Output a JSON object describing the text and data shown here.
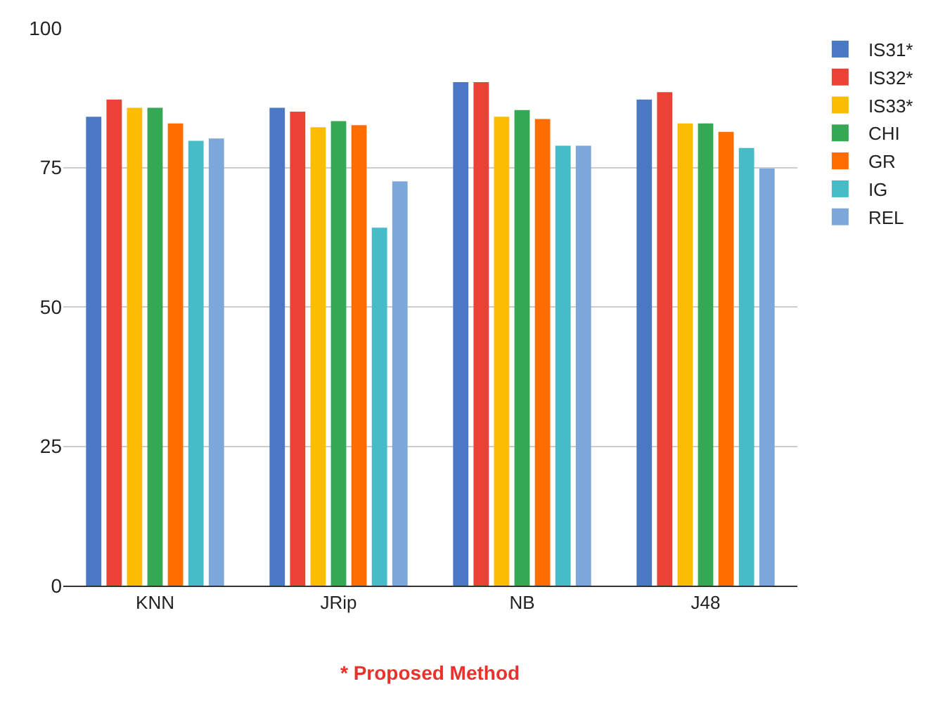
{
  "chart_data": {
    "type": "bar",
    "categories": [
      "KNN",
      "JRip",
      "NB",
      "J48"
    ],
    "series": [
      {
        "name": "IS31*",
        "color": "#4a78c4",
        "values": [
          84.1,
          85.7,
          90.3,
          87.2
        ]
      },
      {
        "name": "IS32*",
        "color": "#ea4335",
        "values": [
          87.2,
          85.0,
          90.3,
          88.5
        ]
      },
      {
        "name": "IS33*",
        "color": "#fbbc04",
        "values": [
          85.7,
          82.2,
          84.1,
          82.9
        ]
      },
      {
        "name": "CHI",
        "color": "#34a853",
        "values": [
          85.7,
          83.3,
          85.3,
          82.9
        ]
      },
      {
        "name": "GR",
        "color": "#ff6d01",
        "values": [
          82.9,
          82.6,
          83.7,
          81.4
        ]
      },
      {
        "name": "IG",
        "color": "#46bdc6",
        "values": [
          79.8,
          64.2,
          78.9,
          78.5
        ]
      },
      {
        "name": "REL",
        "color": "#7ba7da",
        "values": [
          80.2,
          72.5,
          78.9,
          74.8
        ]
      }
    ],
    "ylim": [
      0,
      100
    ],
    "yticks": [
      0,
      25,
      50,
      75,
      100
    ],
    "grid": "y",
    "legend": "right",
    "annotations": [
      "* Proposed Method"
    ]
  }
}
